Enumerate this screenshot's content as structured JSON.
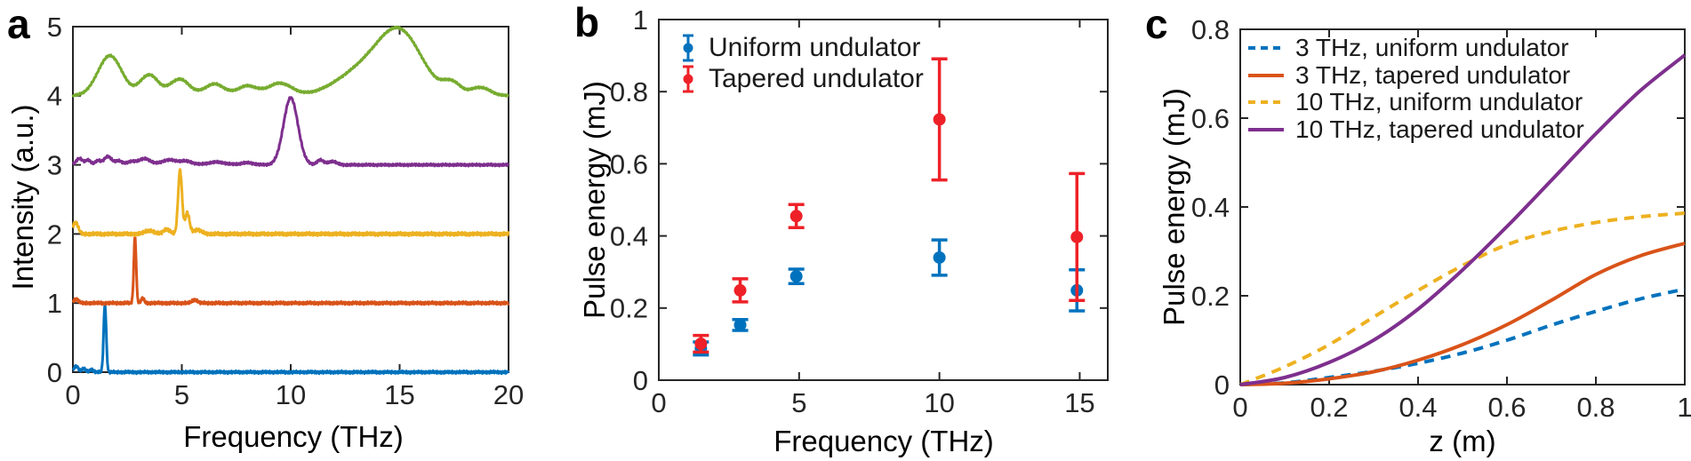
{
  "panels": {
    "a": {
      "letter": "a"
    },
    "b": {
      "letter": "b"
    },
    "c": {
      "letter": "c"
    }
  },
  "chart_data": [
    {
      "panel": "a",
      "type": "line",
      "title": "",
      "xlabel": "Frequency (THz)",
      "ylabel": "Intensity (a.u.)",
      "xlim": [
        0,
        20
      ],
      "ylim": [
        0,
        5
      ],
      "xticks": [
        0,
        5,
        10,
        15,
        20
      ],
      "yticks": [
        0,
        1,
        2,
        3,
        4,
        5
      ],
      "grid": false,
      "series": [
        {
          "color": "#0072BD",
          "baseline": 0,
          "noise": 0.012,
          "peaks": [
            [
              1.47,
              0.97,
              0.06
            ],
            [
              0.15,
              0.09,
              0.1
            ],
            [
              0.5,
              0.05,
              0.09
            ],
            [
              0.85,
              0.04,
              0.08
            ]
          ]
        },
        {
          "color": "#D95319",
          "baseline": 1,
          "noise": 0.013,
          "peaks": [
            [
              2.85,
              0.95,
              0.055
            ],
            [
              0.15,
              0.06,
              0.1
            ],
            [
              3.2,
              0.07,
              0.07
            ],
            [
              5.6,
              0.05,
              0.12
            ]
          ]
        },
        {
          "color": "#EDB120",
          "baseline": 2,
          "noise": 0.015,
          "peaks": [
            [
              4.92,
              0.92,
              0.09
            ],
            [
              5.25,
              0.3,
              0.1
            ],
            [
              0.12,
              0.17,
              0.12
            ],
            [
              3.5,
              0.05,
              0.2
            ],
            [
              4.3,
              0.07,
              0.15
            ],
            [
              5.7,
              0.06,
              0.2
            ]
          ]
        },
        {
          "color": "#7E2F8E",
          "baseline": 3,
          "noise": 0.01,
          "peaks": [
            [
              10.0,
              0.97,
              0.33
            ],
            [
              0.3,
              0.09,
              0.15
            ],
            [
              0.7,
              0.07,
              0.12
            ],
            [
              1.15,
              0.06,
              0.12
            ],
            [
              1.6,
              0.12,
              0.18
            ],
            [
              2.1,
              0.06,
              0.15
            ],
            [
              2.7,
              0.05,
              0.2
            ],
            [
              3.3,
              0.09,
              0.25
            ],
            [
              4.4,
              0.07,
              0.35
            ],
            [
              5.2,
              0.05,
              0.3
            ],
            [
              6.6,
              0.04,
              0.4
            ],
            [
              8.0,
              0.03,
              0.3
            ],
            [
              11.35,
              0.07,
              0.15
            ],
            [
              11.9,
              0.05,
              0.2
            ]
          ]
        },
        {
          "color": "#77AC30",
          "baseline": 4,
          "noise": 0.008,
          "peaks": [
            [
              1.7,
              0.58,
              0.55
            ],
            [
              3.5,
              0.3,
              0.42
            ],
            [
              4.9,
              0.24,
              0.45
            ],
            [
              6.5,
              0.17,
              0.45
            ],
            [
              8.0,
              0.14,
              0.45
            ],
            [
              9.5,
              0.18,
              0.55
            ],
            [
              13.3,
              0.35,
              1.2
            ],
            [
              15.05,
              0.85,
              1.0
            ],
            [
              17.4,
              0.17,
              0.4
            ],
            [
              18.7,
              0.12,
              0.45
            ]
          ]
        }
      ]
    },
    {
      "panel": "b",
      "type": "scatter",
      "title": "",
      "xlabel": "Frequency (THz)",
      "ylabel": "Pulse energy (mJ)",
      "xlim": [
        0,
        16
      ],
      "ylim": [
        0,
        1
      ],
      "xticks": [
        0,
        5,
        10,
        15
      ],
      "yticks": [
        0,
        0.2,
        0.4,
        0.6,
        0.8,
        1
      ],
      "grid": false,
      "legend_position": "top-left",
      "x": [
        1.5,
        2.9,
        4.9,
        10,
        14.9
      ],
      "series": [
        {
          "name": "Uniform undulator",
          "color": "#0072BD",
          "y": [
            0.088,
            0.153,
            0.288,
            0.34,
            0.249
          ],
          "yerr": [
            0.018,
            0.015,
            0.02,
            0.049,
            0.057
          ]
        },
        {
          "name": "Tapered undulator",
          "color": "#EE2128",
          "y": [
            0.101,
            0.249,
            0.455,
            0.723,
            0.397
          ],
          "yerr": [
            0.023,
            0.032,
            0.032,
            0.168,
            0.176
          ]
        }
      ]
    },
    {
      "panel": "c",
      "type": "line",
      "title": "",
      "xlabel": "z (m)",
      "ylabel": "Pulse energy (mJ)",
      "xlim": [
        0,
        1
      ],
      "ylim": [
        0,
        0.8
      ],
      "xticks": [
        0,
        0.2,
        0.4,
        0.6,
        0.8,
        1
      ],
      "yticks": [
        0,
        0.2,
        0.4,
        0.6,
        0.8
      ],
      "grid": false,
      "legend_position": "top-left",
      "x": [
        0,
        0.1,
        0.2,
        0.3,
        0.4,
        0.5,
        0.6,
        0.7,
        0.8,
        0.9,
        1.0
      ],
      "series": [
        {
          "name": "3 THz, uniform undulator",
          "color": "#0072BD",
          "dash": true,
          "y": [
            0,
            0.004,
            0.016,
            0.03,
            0.048,
            0.071,
            0.1,
            0.134,
            0.165,
            0.193,
            0.215
          ]
        },
        {
          "name": "3 THz, tapered undulator",
          "color": "#D95319",
          "dash": false,
          "y": [
            0,
            0.003,
            0.013,
            0.029,
            0.055,
            0.09,
            0.135,
            0.19,
            0.248,
            0.29,
            0.318
          ]
        },
        {
          "name": "10 THz, uniform undulator",
          "color": "#EDB120",
          "dash": true,
          "y": [
            0,
            0.04,
            0.09,
            0.152,
            0.212,
            0.268,
            0.315,
            0.345,
            0.365,
            0.378,
            0.386
          ]
        },
        {
          "name": "10 THz, tapered undulator",
          "color": "#7E2F8E",
          "dash": false,
          "y": [
            0,
            0.016,
            0.05,
            0.1,
            0.17,
            0.258,
            0.356,
            0.46,
            0.565,
            0.662,
            0.742
          ]
        }
      ]
    }
  ]
}
